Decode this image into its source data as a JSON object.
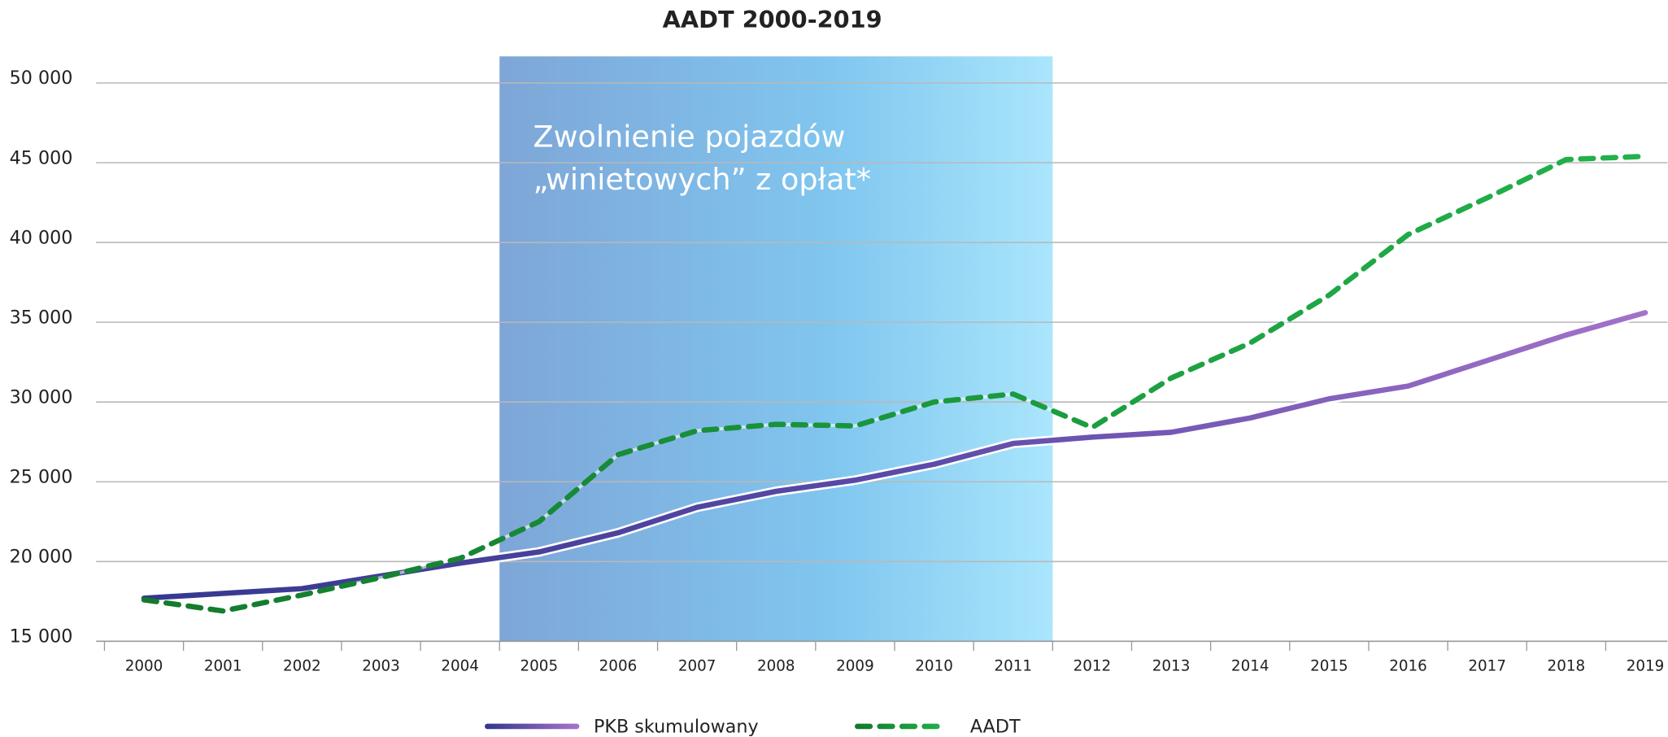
{
  "chart_data": {
    "type": "line",
    "title": "AADT 2000-2019",
    "annotation": [
      "Zwolnienie pojazdów",
      "„winietowych” z opłat*"
    ],
    "categories": [
      "2000",
      "2001",
      "2002",
      "2003",
      "2004",
      "2005",
      "2006",
      "2007",
      "2008",
      "2009",
      "2010",
      "2011",
      "2012",
      "2013",
      "2014",
      "2015",
      "2016",
      "2017",
      "2018",
      "2019"
    ],
    "series": [
      {
        "name": "PKB skumulowany",
        "color": "#34388f",
        "values": [
          17700,
          18000,
          18300,
          19100,
          19900,
          20600,
          21800,
          23400,
          24400,
          25100,
          26100,
          27400,
          27800,
          28100,
          29000,
          30200,
          31000,
          32600,
          34200,
          35600
        ]
      },
      {
        "name": "AADT",
        "color": "#137a2c",
        "dashed": true,
        "values": [
          17600,
          16900,
          17900,
          19000,
          20200,
          22500,
          26700,
          28200,
          28600,
          28500,
          30000,
          30500,
          28400,
          31500,
          33700,
          36700,
          40500,
          42800,
          45200,
          45400
        ]
      }
    ],
    "ylim": [
      15000,
      50000
    ],
    "yticks": [
      {
        "value": 15000,
        "label": "15 000"
      },
      {
        "value": 20000,
        "label": "20 000"
      },
      {
        "value": 25000,
        "label": "25 000"
      },
      {
        "value": 30000,
        "label": "30 000"
      },
      {
        "value": 35000,
        "label": "35 000"
      },
      {
        "value": 40000,
        "label": "40 000"
      },
      {
        "value": 45000,
        "label": "45 000"
      },
      {
        "value": 50000,
        "label": "50 000"
      }
    ],
    "grid": true,
    "legend": "bottom"
  }
}
